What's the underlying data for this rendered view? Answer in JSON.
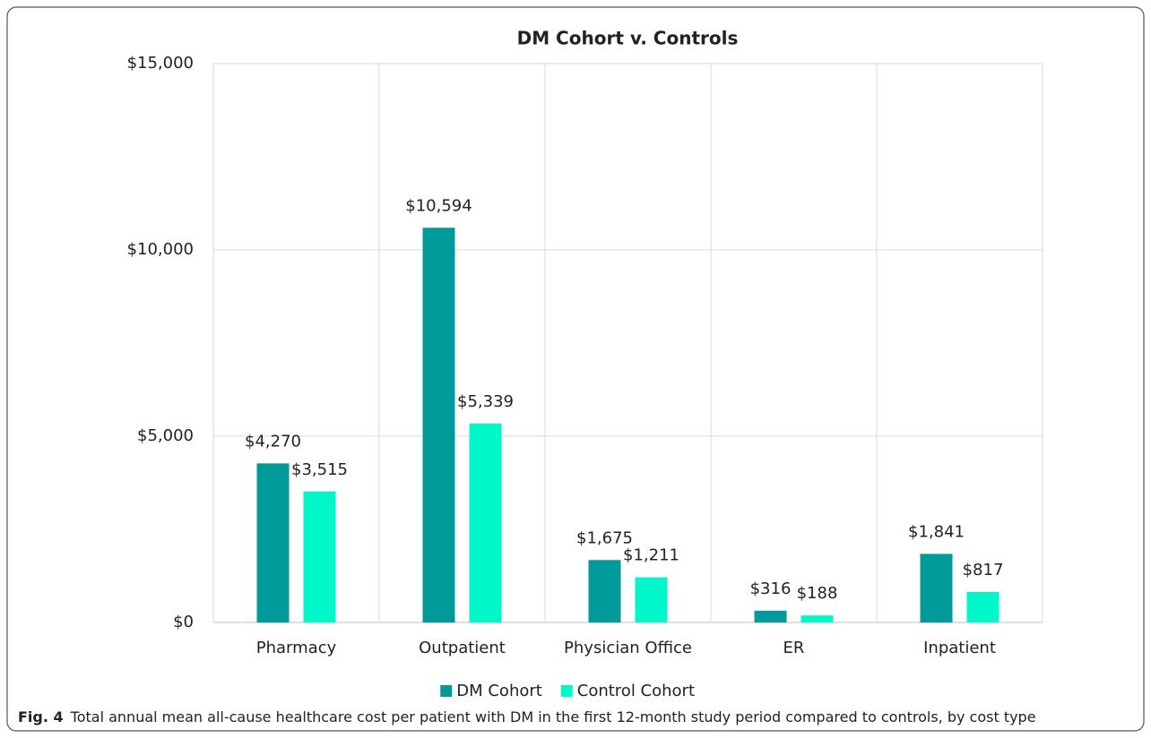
{
  "chart_data": {
    "type": "bar",
    "title": "DM Cohort v. Controls",
    "categories": [
      "Pharmacy",
      "Outpatient",
      "Physician Office",
      "ER",
      "Inpatient"
    ],
    "series": [
      {
        "name": "DM Cohort",
        "color": "#009a9a",
        "values": [
          4270,
          10594,
          1675,
          316,
          1841
        ],
        "value_labels": [
          "$4,270",
          "$10,594",
          "$1,675",
          "$316",
          "$1,841"
        ]
      },
      {
        "name": "Control Cohort",
        "color": "#00f7c9",
        "values": [
          3515,
          5339,
          1211,
          188,
          817
        ],
        "value_labels": [
          "$3,515",
          "$5,339",
          "$1,211",
          "$188",
          "$817"
        ]
      }
    ],
    "ylim": [
      0,
      15000
    ],
    "yticks": [
      {
        "value": 0,
        "label": "$0"
      },
      {
        "value": 5000,
        "label": "$5,000"
      },
      {
        "value": 10000,
        "label": "$10,000"
      },
      {
        "value": 15000,
        "label": "$15,000"
      }
    ],
    "grid": true,
    "legend": "bottom"
  },
  "caption": {
    "label": "Fig. 4",
    "text": "Total annual mean all-cause healthcare cost per patient with DM in the first 12-month study period compared to controls, by cost type"
  }
}
